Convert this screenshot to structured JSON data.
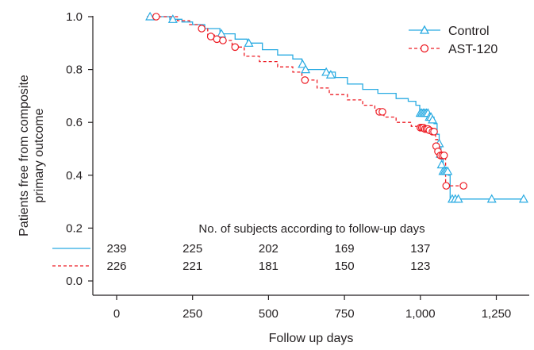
{
  "chart_data": {
    "type": "line",
    "title": "",
    "xlabel": "Follow up days",
    "ylabel_lines": [
      "Patients free from composite",
      "primary outcome"
    ],
    "xlim": [
      -60,
      1400
    ],
    "ylim": [
      -0.08,
      1.04
    ],
    "x_ticks": [
      0,
      250,
      500,
      750,
      1000,
      1250
    ],
    "x_tick_labels": [
      "0",
      "250",
      "500",
      "750",
      "1,000",
      "1,250"
    ],
    "y_ticks": [
      0.0,
      0.2,
      0.4,
      0.6,
      0.8,
      1.0
    ],
    "y_tick_labels": [
      "0.0",
      "0.2",
      "0.4",
      "0.6",
      "0.8",
      "1.0"
    ],
    "grid": false,
    "legend_position": "top-right",
    "series": [
      {
        "name": "Control",
        "color": "#29abe2",
        "line_style": "solid",
        "marker": "triangle",
        "steps": [
          [
            100,
            1.0
          ],
          [
            175,
            0.99
          ],
          [
            215,
            0.98
          ],
          [
            250,
            0.97
          ],
          [
            290,
            0.955
          ],
          [
            340,
            0.935
          ],
          [
            390,
            0.915
          ],
          [
            430,
            0.9
          ],
          [
            480,
            0.875
          ],
          [
            530,
            0.855
          ],
          [
            580,
            0.84
          ],
          [
            610,
            0.82
          ],
          [
            620,
            0.8
          ],
          [
            650,
            0.8
          ],
          [
            690,
            0.79
          ],
          [
            720,
            0.77
          ],
          [
            760,
            0.745
          ],
          [
            810,
            0.725
          ],
          [
            860,
            0.71
          ],
          [
            920,
            0.69
          ],
          [
            960,
            0.68
          ],
          [
            985,
            0.665
          ],
          [
            998,
            0.635
          ],
          [
            1030,
            0.62
          ],
          [
            1045,
            0.595
          ],
          [
            1055,
            0.555
          ],
          [
            1062,
            0.52
          ],
          [
            1068,
            0.46
          ],
          [
            1075,
            0.415
          ],
          [
            1092,
            0.4
          ],
          [
            1098,
            0.31
          ],
          [
            1340,
            0.31
          ]
        ],
        "censored": [
          [
            110,
            1.0
          ],
          [
            185,
            0.99
          ],
          [
            345,
            0.935
          ],
          [
            435,
            0.9
          ],
          [
            612,
            0.82
          ],
          [
            622,
            0.8
          ],
          [
            690,
            0.79
          ],
          [
            705,
            0.78
          ],
          [
            1000,
            0.635
          ],
          [
            1005,
            0.635
          ],
          [
            1010,
            0.635
          ],
          [
            1015,
            0.635
          ],
          [
            1020,
            0.635
          ],
          [
            1025,
            0.635
          ],
          [
            1030,
            0.62
          ],
          [
            1035,
            0.62
          ],
          [
            1040,
            0.61
          ],
          [
            1062,
            0.52
          ],
          [
            1066,
            0.48
          ],
          [
            1070,
            0.44
          ],
          [
            1075,
            0.415
          ],
          [
            1080,
            0.415
          ],
          [
            1085,
            0.415
          ],
          [
            1090,
            0.415
          ],
          [
            1105,
            0.31
          ],
          [
            1115,
            0.31
          ],
          [
            1125,
            0.31
          ],
          [
            1235,
            0.31
          ],
          [
            1340,
            0.31
          ]
        ]
      },
      {
        "name": "AST-120",
        "color": "#ed1c24",
        "line_style": "dashed",
        "marker": "circle",
        "steps": [
          [
            100,
            1.0
          ],
          [
            200,
            0.985
          ],
          [
            240,
            0.97
          ],
          [
            275,
            0.955
          ],
          [
            300,
            0.93
          ],
          [
            330,
            0.91
          ],
          [
            380,
            0.885
          ],
          [
            420,
            0.85
          ],
          [
            470,
            0.83
          ],
          [
            530,
            0.81
          ],
          [
            580,
            0.79
          ],
          [
            610,
            0.76
          ],
          [
            660,
            0.73
          ],
          [
            700,
            0.705
          ],
          [
            760,
            0.685
          ],
          [
            810,
            0.665
          ],
          [
            850,
            0.645
          ],
          [
            880,
            0.62
          ],
          [
            920,
            0.6
          ],
          [
            970,
            0.585
          ],
          [
            1000,
            0.575
          ],
          [
            1035,
            0.565
          ],
          [
            1050,
            0.535
          ],
          [
            1057,
            0.505
          ],
          [
            1062,
            0.475
          ],
          [
            1078,
            0.475
          ],
          [
            1083,
            0.36
          ],
          [
            1145,
            0.36
          ]
        ],
        "censored": [
          [
            130,
            1.0
          ],
          [
            280,
            0.955
          ],
          [
            310,
            0.925
          ],
          [
            330,
            0.915
          ],
          [
            350,
            0.91
          ],
          [
            390,
            0.885
          ],
          [
            620,
            0.76
          ],
          [
            865,
            0.64
          ],
          [
            875,
            0.64
          ],
          [
            1000,
            0.58
          ],
          [
            1005,
            0.58
          ],
          [
            1010,
            0.58
          ],
          [
            1015,
            0.575
          ],
          [
            1020,
            0.575
          ],
          [
            1025,
            0.575
          ],
          [
            1030,
            0.57
          ],
          [
            1040,
            0.565
          ],
          [
            1045,
            0.565
          ],
          [
            1052,
            0.51
          ],
          [
            1058,
            0.49
          ],
          [
            1066,
            0.475
          ],
          [
            1072,
            0.475
          ],
          [
            1078,
            0.475
          ],
          [
            1085,
            0.36
          ],
          [
            1142,
            0.36
          ]
        ]
      }
    ],
    "risk_table": {
      "title": "No. of subjects according to follow-up days",
      "rows": [
        {
          "series": "Control",
          "counts": [
            "239",
            "225",
            "202",
            "169",
            "137"
          ]
        },
        {
          "series": "AST-120",
          "counts": [
            "226",
            "221",
            "181",
            "150",
            "123"
          ]
        }
      ]
    }
  }
}
